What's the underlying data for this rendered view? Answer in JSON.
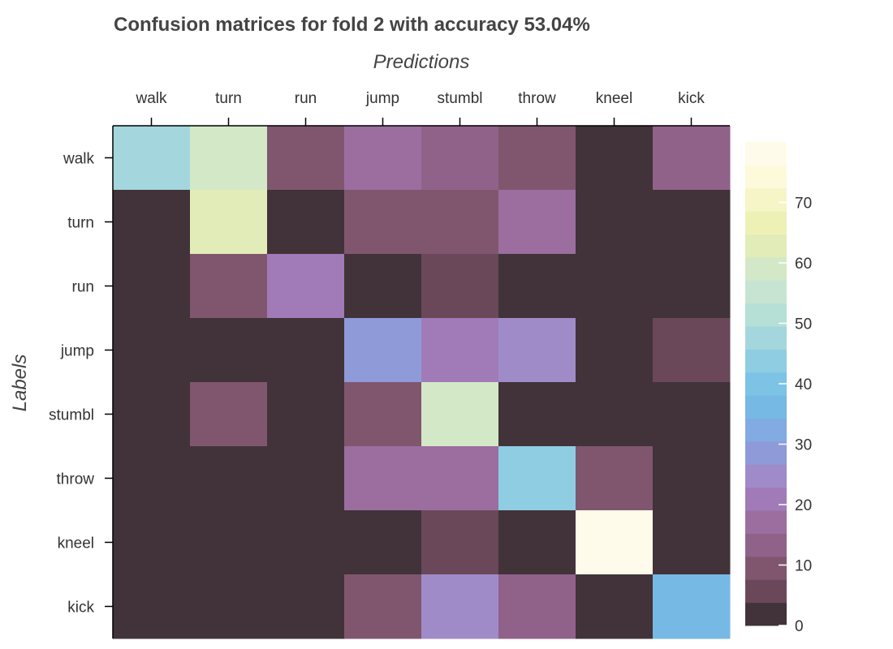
{
  "chart_data": {
    "type": "heatmap",
    "title": "Confusion matrices for fold 2 with accuracy 53.04%",
    "xlabel": "Predictions",
    "ylabel": "Labels",
    "x_categories": [
      "walk",
      "turn",
      "run",
      "jump",
      "stumbl",
      "throw",
      "kneel",
      "kick"
    ],
    "y_categories": [
      "walk",
      "turn",
      "run",
      "jump",
      "stumbl",
      "throw",
      "kneel",
      "kick"
    ],
    "values": [
      [
        48,
        58,
        10,
        18,
        13,
        10,
        2,
        13
      ],
      [
        2,
        62,
        2,
        10,
        10,
        18,
        2,
        2
      ],
      [
        2,
        10,
        22,
        2,
        6,
        2,
        2,
        2
      ],
      [
        2,
        2,
        2,
        30,
        20,
        24,
        2,
        6
      ],
      [
        2,
        10,
        2,
        10,
        58,
        2,
        2,
        2
      ],
      [
        2,
        2,
        2,
        18,
        18,
        42,
        10,
        2
      ],
      [
        2,
        2,
        2,
        2,
        6,
        2,
        79,
        2
      ],
      [
        2,
        2,
        2,
        10,
        24,
        13,
        2,
        36
      ]
    ],
    "colorbar": {
      "range": [
        0,
        80
      ],
      "ticks": [
        0,
        10,
        20,
        30,
        40,
        50,
        60,
        70
      ]
    },
    "colormap": [
      "#413339",
      "#6a4859",
      "#80566f",
      "#90628a",
      "#9b6e9f",
      "#a07bb7",
      "#a08bc9",
      "#8f9ad9",
      "#81abe2",
      "#76b9e4",
      "#7cc3e5",
      "#8fcde3",
      "#a4d7dd",
      "#b6dfd6",
      "#c6e4d1",
      "#d3e8c7",
      "#e2ecb8",
      "#eef1b5",
      "#f6f5c8",
      "#fdf9db",
      "#fffbea"
    ]
  }
}
